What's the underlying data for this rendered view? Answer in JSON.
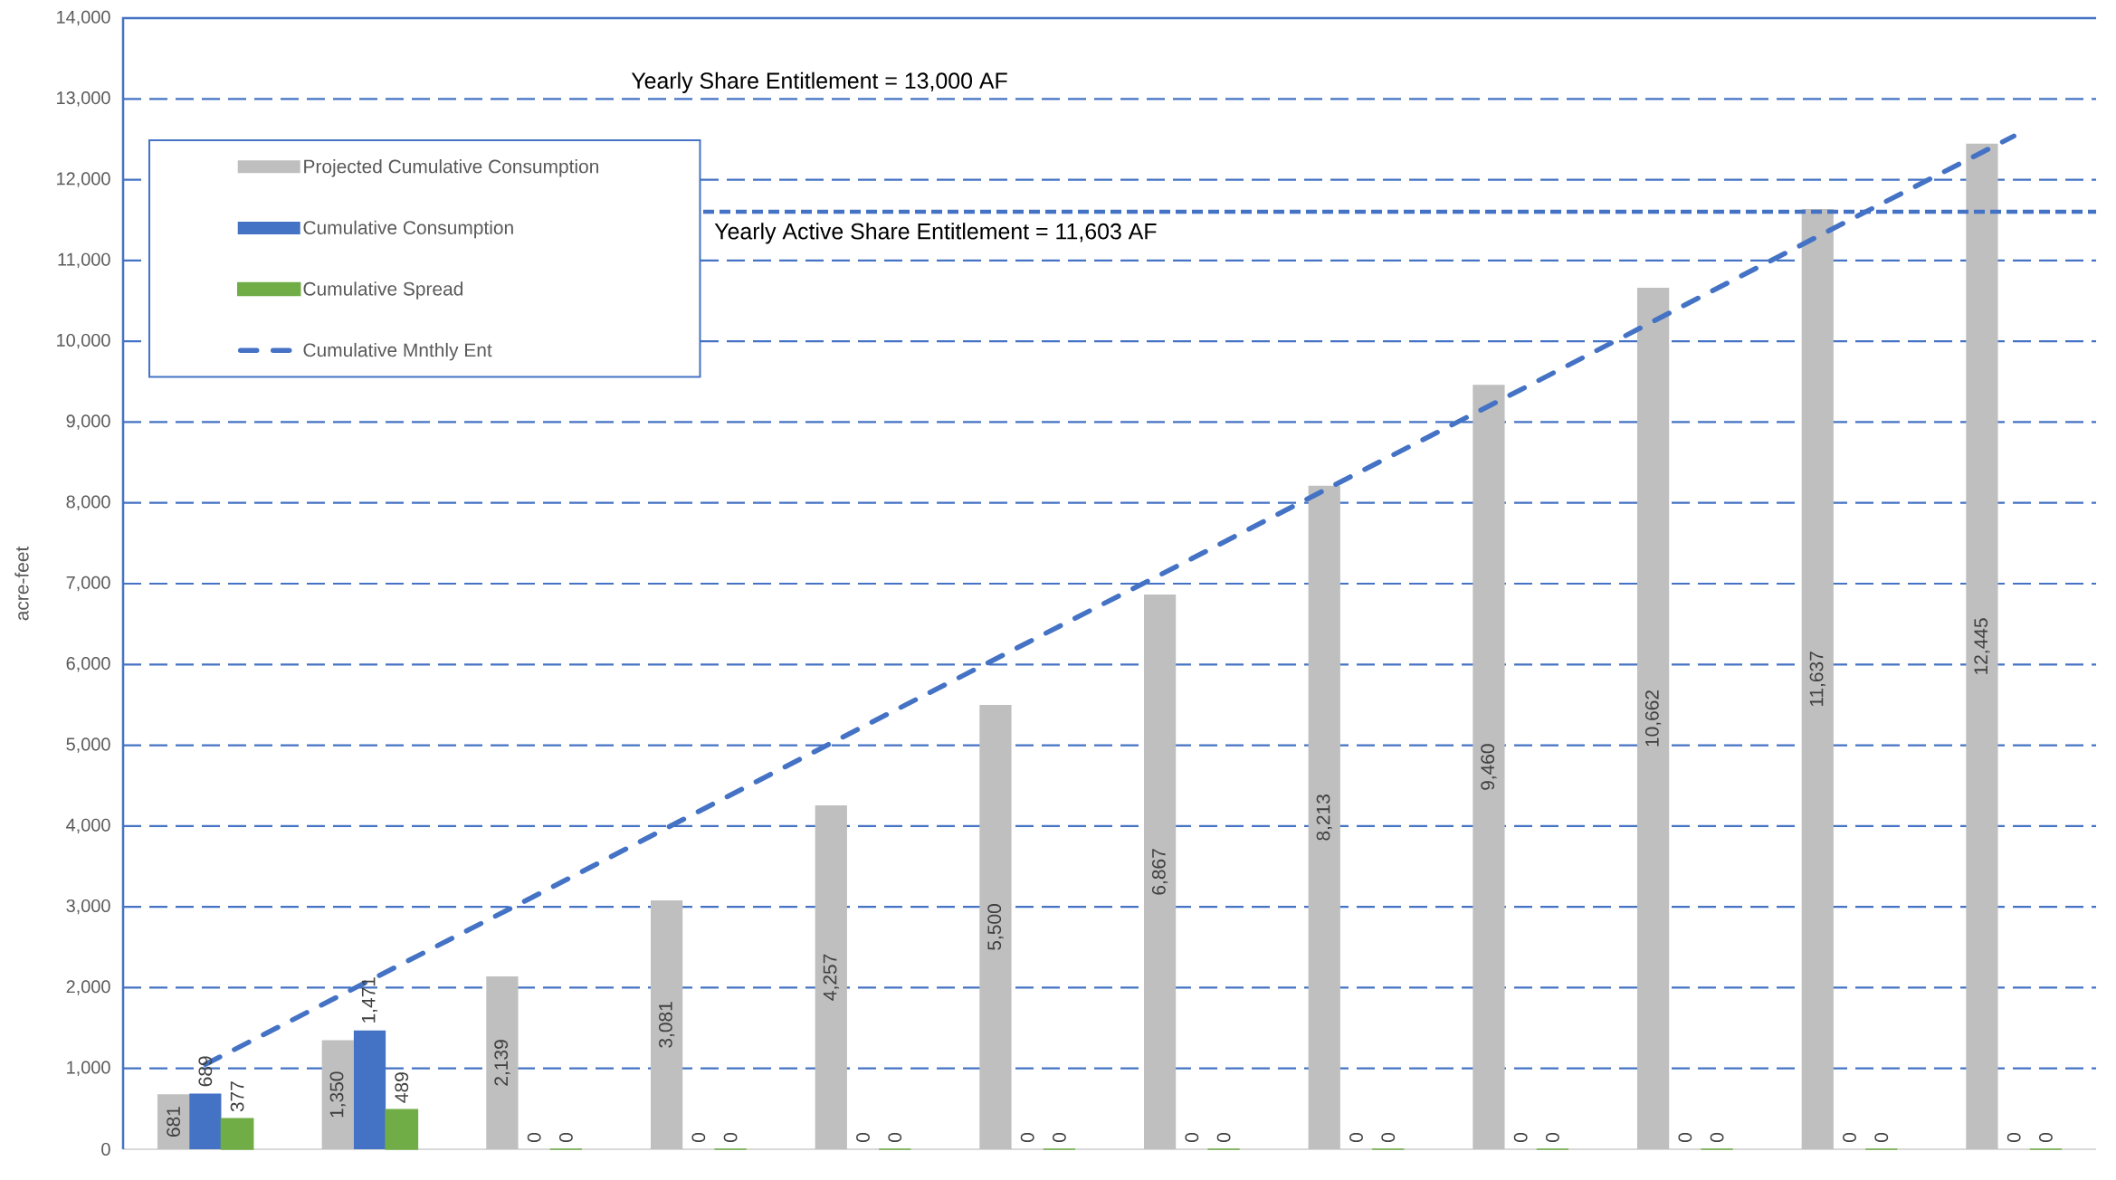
{
  "chart_data": {
    "type": "bar",
    "ylabel": "acre-feet",
    "categories": [
      null,
      null,
      null,
      null,
      null,
      null,
      null,
      null,
      null,
      null,
      null,
      null
    ],
    "series": [
      {
        "name": "Projected Cumulative Consumption",
        "color": "#bfbfbf",
        "values": [
          681,
          1350,
          2139,
          3081,
          4257,
          5500,
          6867,
          8213,
          9460,
          10662,
          11637,
          12445
        ],
        "value_labels": [
          "681",
          "1,350",
          "2,139",
          "3,081",
          "4,257",
          "5,500",
          "6,867",
          "8,213",
          "9,460",
          "10,662",
          "11,637",
          "12,445"
        ]
      },
      {
        "name": "Cumulative Consumption",
        "color": "#4472c4",
        "values": [
          689,
          1471,
          0,
          0,
          0,
          0,
          0,
          0,
          0,
          0,
          0,
          0
        ],
        "value_labels": [
          "689",
          "1,471",
          "0",
          "0",
          "0",
          "0",
          "0",
          "0",
          "0",
          "0",
          "0",
          "0"
        ]
      },
      {
        "name": "Cumulative Spread",
        "color": "#70ad47",
        "values": [
          377,
          489,
          0,
          0,
          0,
          0,
          0,
          0,
          0,
          0,
          0,
          0
        ],
        "value_labels": [
          "377",
          "489",
          "0",
          "0",
          "0",
          "0",
          "0",
          "0",
          "0",
          "0",
          "0",
          "0"
        ]
      },
      {
        "name": "Cumulative Mnthly Ent",
        "type": "line",
        "color": "#4472c4",
        "line_style": "dashed",
        "values": [
          1050,
          2090,
          3130,
          4180,
          5230,
          6270,
          7310,
          8360,
          9400,
          10450,
          11500,
          12540
        ]
      }
    ],
    "ylim": [
      0,
      14000
    ],
    "yticks": [
      0,
      {
        "value": 1000,
        "label": "1,000"
      },
      {
        "value": 2000,
        "label": "2,000"
      },
      {
        "value": 3000,
        "label": "3,000"
      },
      {
        "value": 4000,
        "label": "4,000"
      },
      {
        "value": 5000,
        "label": "5,000"
      },
      {
        "value": 6000,
        "label": "6,000"
      },
      {
        "value": 7000,
        "label": "7,000"
      },
      {
        "value": 8000,
        "label": "8,000"
      },
      {
        "value": 9000,
        "label": "9,000"
      },
      {
        "value": 10000,
        "label": "10,000"
      },
      {
        "value": 11000,
        "label": "11,000"
      },
      {
        "value": 12000,
        "label": "12,000"
      },
      {
        "value": 13000,
        "label": "13,000"
      },
      {
        "value": 14000,
        "label": "14,000"
      }
    ],
    "grid": "y",
    "legend": "top left",
    "ref_lines": [
      {
        "axis": "y",
        "value": 11603,
        "label": "Yearly Active Share Entitlement = 11,603 AF",
        "color": "#4472c4",
        "line_style": "dashed"
      }
    ],
    "annotations": [
      "Yearly Share Entitlement = 13,000 AF"
    ]
  }
}
